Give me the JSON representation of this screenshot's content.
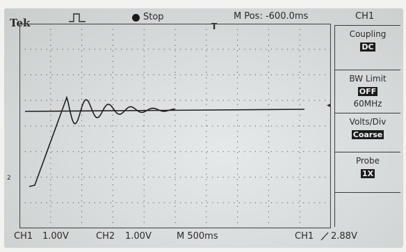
{
  "header": {
    "brand": "Tek",
    "run_state": "Stop",
    "position": "M Pos: -600.0ms",
    "channel": "CH1"
  },
  "icons": {
    "trigger_type": "rising-edge-pulse-icon",
    "run_indicator": "stop-dot-icon",
    "trigger_position": "t-marker-icon",
    "trigger_level": "left-arrow-icon"
  },
  "markers": {
    "trigger_pos": "T",
    "channel": "2",
    "trigger_level": "◂"
  },
  "menu": [
    {
      "label": "Coupling",
      "value": "DC",
      "sub": ""
    },
    {
      "label": "BW Limit",
      "value": "OFF",
      "sub": "60MHz"
    },
    {
      "label": "Volts/Div",
      "value": "Coarse",
      "sub": ""
    },
    {
      "label": "Probe",
      "value": "1X",
      "sub": ""
    },
    {
      "label": "",
      "value": "",
      "sub": ""
    }
  ],
  "status": {
    "ch1": "CH1",
    "ch1_scale": "1.00V",
    "ch2": "CH2",
    "ch2_scale": "1.00V",
    "timebase": "M 500ms",
    "trigger_source": "CH1",
    "trigger_slope": "rising-slope-icon",
    "trigger_value": "2.88V"
  },
  "colors": {
    "screen": "#d9dddd",
    "trace": "#1f1f1f",
    "text": "#2a2a2a"
  }
}
